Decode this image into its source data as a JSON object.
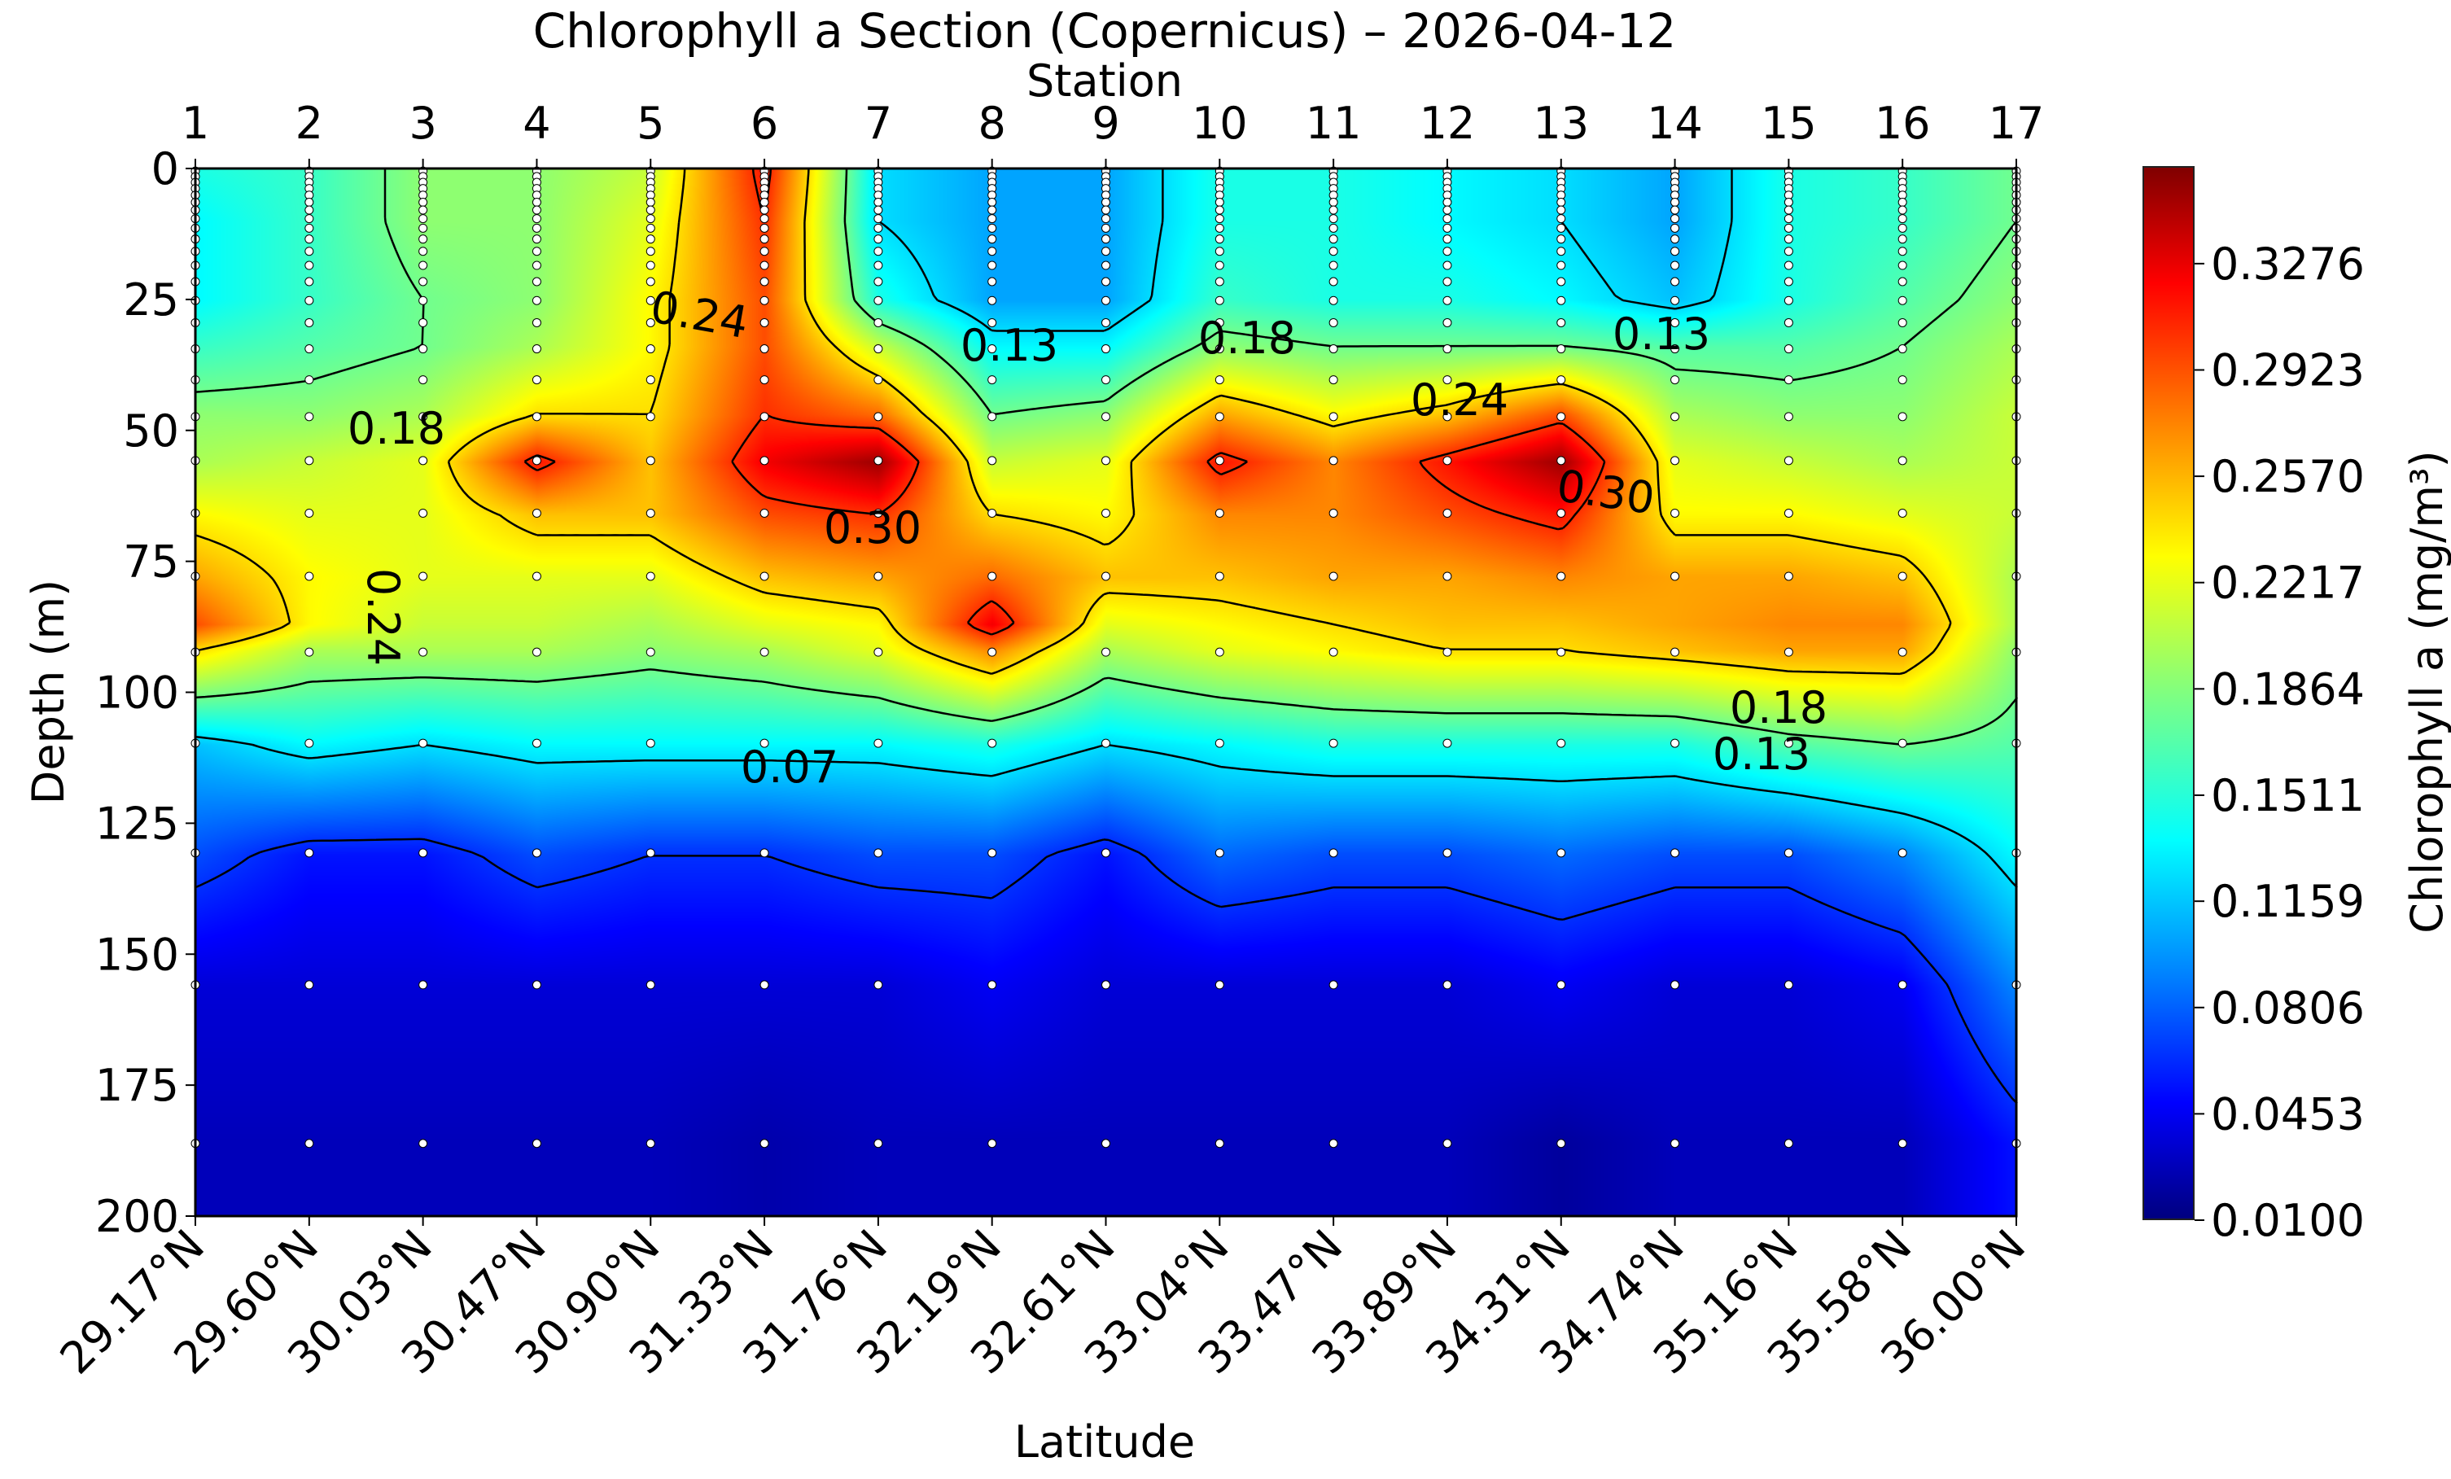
{
  "chart_data": {
    "type": "heatmap",
    "subtype": "filled-contour section",
    "title": "Chlorophyll a Section (Copernicus) – 2026-04-12",
    "top_xlabel": "Station",
    "xlabel": "Latitude",
    "ylabel": "Depth (m)",
    "colorbar_label": "Chlorophyll a (mg/m³)",
    "colormap": "jet",
    "color_range": [
      0.01,
      0.36
    ],
    "colorbar_ticks": [
      "0.0100",
      "0.0453",
      "0.0806",
      "0.1159",
      "0.1511",
      "0.1864",
      "0.2217",
      "0.2570",
      "0.2923",
      "0.3276"
    ],
    "ylim": [
      200,
      0
    ],
    "yticks": [
      "0",
      "25",
      "50",
      "75",
      "100",
      "125",
      "150",
      "175",
      "200"
    ],
    "stations": [
      "1",
      "2",
      "3",
      "4",
      "5",
      "6",
      "7",
      "8",
      "9",
      "10",
      "11",
      "12",
      "13",
      "14",
      "15",
      "16",
      "17"
    ],
    "latitudes": [
      "29.17°N",
      "29.60°N",
      "30.03°N",
      "30.47°N",
      "30.90°N",
      "31.33°N",
      "31.76°N",
      "32.19°N",
      "32.61°N",
      "33.04°N",
      "33.47°N",
      "33.89°N",
      "34.31°N",
      "34.74°N",
      "35.16°N",
      "35.58°N",
      "36.00°N"
    ],
    "sample_depths": [
      0.49,
      1.54,
      2.65,
      3.82,
      5.08,
      6.44,
      7.93,
      9.57,
      11.4,
      13.47,
      15.81,
      18.5,
      21.6,
      25.21,
      29.44,
      34.43,
      40.34,
      47.37,
      55.76,
      65.81,
      77.85,
      92.33,
      109.73,
      130.67,
      155.85,
      186.13
    ],
    "grid_depths": [
      0.5,
      10,
      25,
      34,
      47,
      56,
      66,
      78,
      87,
      92,
      110,
      131,
      156,
      186
    ],
    "values": [
      [
        0.15,
        0.14,
        0.14,
        0.16,
        0.19,
        0.2,
        0.23,
        0.26,
        0.29,
        0.24,
        0.12,
        0.08,
        0.04,
        0.03
      ],
      [
        0.16,
        0.16,
        0.16,
        0.17,
        0.19,
        0.21,
        0.22,
        0.23,
        0.23,
        0.2,
        0.14,
        0.06,
        0.04,
        0.03
      ],
      [
        0.19,
        0.19,
        0.18,
        0.18,
        0.2,
        0.22,
        0.22,
        0.22,
        0.21,
        0.2,
        0.13,
        0.06,
        0.04,
        0.03
      ],
      [
        0.19,
        0.19,
        0.19,
        0.2,
        0.24,
        0.31,
        0.25,
        0.22,
        0.21,
        0.2,
        0.14,
        0.08,
        0.04,
        0.03
      ],
      [
        0.21,
        0.22,
        0.23,
        0.23,
        0.24,
        0.25,
        0.25,
        0.22,
        0.2,
        0.19,
        0.14,
        0.07,
        0.04,
        0.03
      ],
      [
        0.31,
        0.3,
        0.29,
        0.29,
        0.3,
        0.32,
        0.29,
        0.25,
        0.22,
        0.2,
        0.14,
        0.07,
        0.04,
        0.025
      ],
      [
        0.13,
        0.13,
        0.15,
        0.21,
        0.28,
        0.35,
        0.3,
        0.26,
        0.23,
        0.22,
        0.14,
        0.08,
        0.04,
        0.03
      ],
      [
        0.11,
        0.11,
        0.11,
        0.14,
        0.18,
        0.21,
        0.24,
        0.28,
        0.32,
        0.27,
        0.15,
        0.08,
        0.05,
        0.03
      ],
      [
        0.11,
        0.11,
        0.11,
        0.14,
        0.19,
        0.22,
        0.23,
        0.25,
        0.22,
        0.2,
        0.13,
        0.06,
        0.04,
        0.03
      ],
      [
        0.15,
        0.15,
        0.16,
        0.19,
        0.26,
        0.31,
        0.27,
        0.25,
        0.23,
        0.22,
        0.14,
        0.09,
        0.04,
        0.03
      ],
      [
        0.15,
        0.15,
        0.15,
        0.18,
        0.23,
        0.27,
        0.27,
        0.26,
        0.24,
        0.23,
        0.15,
        0.08,
        0.04,
        0.03
      ],
      [
        0.14,
        0.14,
        0.15,
        0.18,
        0.25,
        0.31,
        0.29,
        0.26,
        0.25,
        0.24,
        0.15,
        0.08,
        0.04,
        0.03
      ],
      [
        0.13,
        0.13,
        0.14,
        0.18,
        0.29,
        0.35,
        0.31,
        0.27,
        0.25,
        0.24,
        0.15,
        0.09,
        0.05,
        0.02
      ],
      [
        0.11,
        0.11,
        0.12,
        0.17,
        0.2,
        0.22,
        0.23,
        0.26,
        0.26,
        0.25,
        0.15,
        0.08,
        0.04,
        0.03
      ],
      [
        0.15,
        0.15,
        0.15,
        0.17,
        0.19,
        0.21,
        0.23,
        0.26,
        0.27,
        0.26,
        0.17,
        0.08,
        0.04,
        0.03
      ],
      [
        0.16,
        0.16,
        0.17,
        0.18,
        0.19,
        0.2,
        0.22,
        0.25,
        0.27,
        0.26,
        0.18,
        0.1,
        0.05,
        0.03
      ],
      [
        0.18,
        0.18,
        0.19,
        0.2,
        0.21,
        0.21,
        0.21,
        0.2,
        0.2,
        0.19,
        0.17,
        0.14,
        0.1,
        0.06
      ]
    ],
    "contour_levels": [
      0.07,
      0.13,
      0.18,
      0.24,
      0.3
    ],
    "contour_labels": [
      "0.24",
      "0.18",
      "0.24",
      "0.13",
      "0.18",
      "0.30",
      "0.24",
      "0.13",
      "0.30",
      "0.07",
      "0.18",
      "0.13"
    ],
    "grid": false
  }
}
